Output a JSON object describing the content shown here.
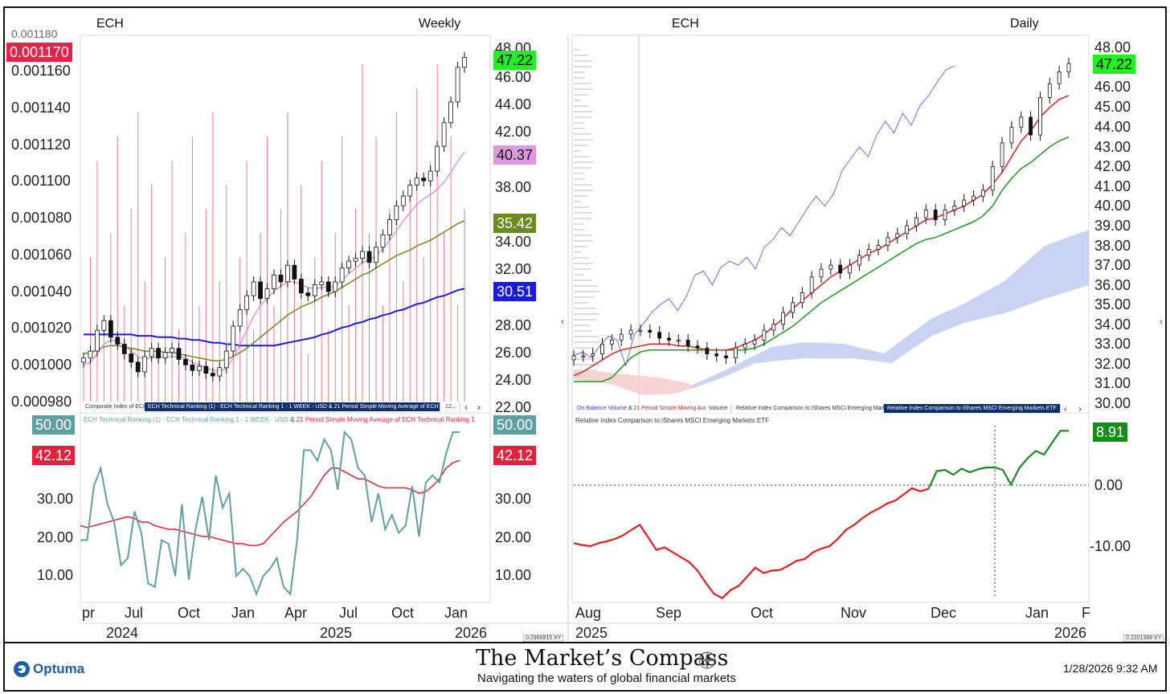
{
  "chart_data": [
    {
      "type": "line",
      "panel": "weekly-price",
      "title": "ECH",
      "timeframe": "Weekly",
      "left_axis_ticks": [
        "0.001160",
        "0.001140",
        "0.001120",
        "0.001100",
        "0.001080",
        "0.001060",
        "0.001040",
        "0.001020",
        "0.001000",
        "0.000980"
      ],
      "right_axis_ticks": [
        "48.00",
        "46.00",
        "44.00",
        "42.00",
        "40.00",
        "38.00",
        "36.00",
        "34.00",
        "32.00",
        "30.00",
        "28.00",
        "26.00",
        "24.00",
        "22.00"
      ],
      "ylim": [
        22,
        48
      ],
      "last_values": {
        "composite_index": "0.001170",
        "price": "47.22",
        "sma_short": "40.37",
        "sma_mid": "35.42",
        "sma_long": "30.51"
      },
      "series": [
        {
          "key": "price_close",
          "values": [
            25.5,
            26.0,
            27.5,
            28.2,
            27.0,
            26.5,
            25.8,
            25.2,
            24.5,
            25.6,
            26.2,
            25.5,
            25.9,
            26.2,
            25.4,
            25.0,
            24.6,
            24.9,
            24.4,
            24.2,
            24.8,
            26.0,
            27.8,
            29.0,
            30.0,
            31.0,
            29.8,
            30.5,
            31.5,
            31.0,
            32.2,
            31.2,
            30.2,
            30.0,
            30.8,
            31.0,
            30.3,
            31.0,
            32.0,
            32.5,
            32.7,
            33.2,
            32.4,
            33.5,
            34.4,
            35.5,
            36.5,
            37.2,
            38.0,
            38.5,
            38.3,
            39.0,
            40.8,
            42.5,
            44.0,
            46.5,
            47.22
          ]
        },
        {
          "key": "sma_short",
          "values": [
            25.0,
            25.2,
            25.8,
            26.5,
            26.8,
            26.7,
            26.4,
            26.0,
            25.6,
            25.4,
            25.5,
            25.6,
            25.6,
            25.6,
            25.6,
            25.5,
            25.2,
            25.0,
            24.8,
            24.6,
            24.5,
            24.8,
            25.5,
            26.5,
            27.5,
            28.5,
            29.3,
            29.8,
            30.3,
            30.7,
            31.0,
            31.0,
            30.8,
            30.6,
            30.5,
            30.6,
            30.6,
            30.7,
            31.1,
            31.6,
            32.0,
            32.4,
            32.6,
            32.9,
            33.4,
            34.0,
            34.7,
            35.4,
            36.0,
            36.6,
            37.0,
            37.3,
            37.7,
            38.2,
            38.9,
            39.7,
            40.37
          ]
        },
        {
          "key": "sma_mid",
          "values": [
            25.8,
            25.9,
            26.1,
            26.3,
            26.4,
            26.4,
            26.3,
            26.2,
            26.1,
            26.0,
            26.0,
            26.0,
            25.9,
            25.9,
            25.8,
            25.7,
            25.6,
            25.5,
            25.4,
            25.3,
            25.3,
            25.4,
            25.6,
            25.9,
            26.2,
            26.6,
            27.0,
            27.4,
            27.8,
            28.2,
            28.6,
            28.9,
            29.2,
            29.4,
            29.6,
            29.9,
            30.1,
            30.3,
            30.6,
            30.9,
            31.2,
            31.5,
            31.7,
            32.0,
            32.3,
            32.6,
            32.9,
            33.1,
            33.3,
            33.6,
            33.8,
            34.0,
            34.3,
            34.6,
            34.9,
            35.2,
            35.42
          ]
        },
        {
          "key": "sma_long",
          "values": [
            27.2,
            27.2,
            27.2,
            27.2,
            27.2,
            27.2,
            27.2,
            27.2,
            27.1,
            27.1,
            27.1,
            27.0,
            27.0,
            27.0,
            26.9,
            26.9,
            26.8,
            26.8,
            26.7,
            26.6,
            26.6,
            26.5,
            26.5,
            26.4,
            26.4,
            26.4,
            26.4,
            26.4,
            26.4,
            26.5,
            26.6,
            26.7,
            26.8,
            26.9,
            27.0,
            27.2,
            27.3,
            27.5,
            27.7,
            27.8,
            28.0,
            28.1,
            28.3,
            28.4,
            28.6,
            28.7,
            28.9,
            29.0,
            29.2,
            29.4,
            29.5,
            29.7,
            29.9,
            30.0,
            30.2,
            30.4,
            30.51
          ]
        }
      ]
    },
    {
      "type": "line",
      "panel": "weekly-ranking",
      "legend": [
        "ECH Technical Ranking (1) - ECH Technical Ranking  1 - 1 WEEK - USD",
        "21 Period Simple Moving Average of ECH Technical Ranking  1"
      ],
      "y_ticks": [
        "30.00",
        "20.00",
        "10.00"
      ],
      "ylim": [
        0,
        50
      ],
      "last_values": {
        "ranking": "50.00",
        "sma": "42.12"
      },
      "x_labels": [
        "pr",
        "Jul",
        "Oct",
        "Jan",
        "Apr",
        "Jul",
        "Oct",
        "Jan"
      ],
      "years": [
        "2024",
        "2025",
        "2026"
      ],
      "series": [
        {
          "key": "ranking",
          "values": [
            20,
            20,
            35,
            40,
            30,
            25,
            13,
            15,
            28,
            22,
            8,
            7,
            20,
            19,
            10,
            30,
            9,
            23,
            32,
            20,
            38,
            29,
            33,
            10,
            12,
            10,
            5,
            10,
            12,
            15,
            7,
            5,
            20,
            45,
            45,
            42,
            48,
            45,
            34,
            50,
            48,
            40,
            38,
            25,
            33,
            23,
            27,
            22,
            24,
            35,
            21,
            36,
            38,
            36,
            44,
            50,
            50
          ]
        },
        {
          "key": "sma",
          "values": [
            24,
            23.5,
            24,
            24.5,
            25,
            25.5,
            26,
            26.5,
            26,
            25,
            25,
            24,
            23.5,
            23,
            23,
            22.5,
            22,
            21.5,
            21,
            21,
            20.5,
            20,
            19.5,
            19,
            19,
            18.5,
            18.5,
            19,
            21,
            23,
            25,
            26.5,
            28,
            30,
            32,
            35,
            38,
            40,
            40,
            39,
            38,
            37,
            37,
            36,
            35,
            34.5,
            34.5,
            34.5,
            34.5,
            34,
            33,
            33.5,
            35,
            37,
            40,
            41.5,
            42.12
          ]
        }
      ]
    },
    {
      "type": "line",
      "panel": "daily-price",
      "title": "ECH",
      "timeframe": "Daily",
      "y_ticks": [
        "48.00",
        "47.00",
        "46.00",
        "45.00",
        "44.00",
        "43.00",
        "42.00",
        "41.00",
        "40.00",
        "39.00",
        "38.00",
        "37.00",
        "36.00",
        "35.00",
        "34.00",
        "33.00",
        "32.00",
        "31.00",
        "30.00"
      ],
      "ylim": [
        30,
        48
      ],
      "last_values": {
        "price": "47.22"
      },
      "legend_tabs": [
        "On Balance Volume & 21 Period Simple Moving Average",
        "Volume",
        "Relative Index Comparison to iShares MSCI Emerging Markets ETF",
        "Relative Index Comparison to iShares MSCI Emerging Markets ETF"
      ],
      "series": [
        {
          "key": "price_close",
          "values": [
            32.4,
            32.4,
            32.5,
            33.0,
            33.2,
            33.5,
            33.7,
            33.7,
            33.6,
            33.3,
            33.2,
            33.2,
            32.9,
            32.8,
            32.5,
            32.4,
            32.3,
            32.8,
            33.0,
            33.2,
            33.7,
            34.0,
            34.6,
            35.1,
            35.6,
            36.4,
            36.8,
            37.0,
            36.6,
            37.0,
            37.5,
            37.8,
            38.0,
            38.4,
            38.6,
            39.0,
            39.4,
            39.8,
            39.3,
            39.8,
            40.0,
            40.3,
            40.5,
            40.8,
            42.0,
            43.2,
            44.0,
            44.5,
            43.6,
            45.5,
            46.2,
            46.8,
            47.22
          ]
        },
        {
          "key": "sma_fast",
          "values": [
            31.4,
            31.6,
            31.9,
            32.2,
            32.5,
            32.7,
            32.8,
            32.9,
            33.0,
            33.0,
            33.0,
            32.9,
            32.9,
            32.8,
            32.7,
            32.7,
            32.7,
            32.8,
            33.0,
            33.2,
            33.5,
            33.9,
            34.3,
            34.8,
            35.2,
            35.6,
            36.0,
            36.4,
            36.7,
            37.0,
            37.3,
            37.6,
            37.8,
            38.1,
            38.4,
            38.7,
            39.0,
            39.3,
            39.4,
            39.6,
            39.8,
            40.0,
            40.3,
            40.6,
            41.1,
            41.7,
            42.5,
            43.3,
            43.8,
            44.5,
            45.0,
            45.4,
            45.6
          ]
        },
        {
          "key": "sma_slow",
          "values": [
            31.1,
            31.1,
            31.1,
            31.1,
            31.3,
            31.8,
            32.3,
            32.6,
            32.7,
            32.7,
            32.7,
            32.7,
            32.7,
            32.7,
            32.7,
            32.7,
            32.7,
            32.7,
            32.7,
            32.8,
            33.0,
            33.3,
            33.6,
            33.9,
            34.3,
            34.7,
            35.1,
            35.4,
            35.7,
            36.0,
            36.3,
            36.6,
            36.9,
            37.2,
            37.5,
            37.8,
            38.1,
            38.3,
            38.4,
            38.6,
            38.8,
            39.0,
            39.2,
            39.5,
            40.0,
            40.8,
            41.4,
            41.9,
            42.2,
            42.6,
            43.0,
            43.3,
            43.5
          ]
        },
        {
          "key": "obv",
          "values": [
            32.4,
            32.6,
            32.3,
            32.9,
            33.4,
            33.2,
            31.9,
            33.5,
            34.0,
            34.6,
            35.0,
            35.3,
            34.7,
            35.4,
            36.5,
            36.7,
            36.0,
            36.9,
            37.2,
            37.0,
            37.4,
            36.8,
            37.9,
            38.3,
            38.9,
            38.5,
            39.2,
            39.9,
            40.5,
            40.0,
            40.6,
            41.8,
            42.4,
            43.0,
            42.5,
            43.6,
            44.3,
            43.7,
            44.7,
            44.1,
            45.1,
            45.6,
            46.3,
            46.9,
            47.1
          ]
        }
      ],
      "volume_profile_note": ""
    },
    {
      "type": "line",
      "panel": "daily-relative",
      "legend": [
        "Relative Index Comparison to iShares MSCI Emerging Markets ETF"
      ],
      "y_ticks": [
        "0.00",
        "-10.00"
      ],
      "ylim": [
        -20,
        10
      ],
      "last_values": {
        "relative": "8.91"
      },
      "x_labels": [
        "Aug",
        "Sep",
        "Oct",
        "Nov",
        "Dec",
        "Jan",
        "F"
      ],
      "years": [
        "2025",
        "2026"
      ],
      "series": [
        {
          "key": "relative",
          "values": [
            -9.5,
            -9.8,
            -10.0,
            -9.5,
            -9.2,
            -8.8,
            -8.2,
            -7.3,
            -6.5,
            -8.5,
            -10.6,
            -10.2,
            -11.0,
            -11.8,
            -12.6,
            -14.0,
            -16.0,
            -17.8,
            -18.5,
            -17.2,
            -16.5,
            -15.0,
            -13.5,
            -14.4,
            -14.0,
            -13.9,
            -13.2,
            -12.4,
            -12.1,
            -11.0,
            -10.4,
            -10.0,
            -8.8,
            -7.3,
            -6.5,
            -5.4,
            -4.5,
            -3.8,
            -3.0,
            -2.5,
            -1.5,
            -0.5,
            -1.0,
            -0.6,
            2.3,
            2.5,
            1.7,
            2.7,
            2.1,
            2.6,
            2.9,
            2.9,
            2.5,
            0.1,
            2.8,
            4.4,
            5.6,
            5.0,
            7.0,
            8.9,
            8.91
          ]
        }
      ]
    }
  ],
  "footer": {
    "logo_text": "Optuma",
    "title": "The Market’s Compass",
    "subtitle": "Navigating the waters of global financial markets",
    "timestamp": "1/28/2026 9:32 AM"
  },
  "left": {
    "header_symbol": "ECH",
    "header_timeframe": "Weekly",
    "tabs": [
      "Composite Index of ECH",
      "ECH Technical Ranking (1) - ECH Technical Ranking  1 - 1 WEEK - USD & 21 Period Simple Moving Average of ECH Technical Ranking  1",
      "12..."
    ],
    "ranking_legend_a": "ECH Technical Ranking (1) - ECH Technical Ranking  1 - 1 WEEK - USD",
    "ranking_legend_amp": " & ",
    "ranking_legend_b": "21 Period Simple Moving Average of ECH Technical Ranking  1",
    "xy_readout": "0.2966915 XY"
  },
  "right": {
    "header_symbol": "ECH",
    "header_timeframe": "Daily",
    "relative_legend": "Relative Index Comparison to iShares MSCI Emerging Markets ETF",
    "tab_obv_a": "On Balance Volume",
    "tab_obv_amp": " & ",
    "tab_obv_b": "21 Period Simple Moving Average",
    "xy_readout": "0.2201388 XY"
  },
  "colors": {
    "composite": "#e8224a",
    "price_tag": "#22ee22",
    "sma_short": "#e07cd6",
    "sma_mid": "#6b8a20",
    "sma_long": "#1a1ae6",
    "ranking": "#5fa0a0",
    "sma_ranking": "#e0223a",
    "obv": "#6a6aee",
    "sma_red": "#e02020",
    "sma_green": "#179a17",
    "cloud": "#b8c4ee",
    "relative_green": "#1a8a1a",
    "relative_red": "#e02020"
  }
}
